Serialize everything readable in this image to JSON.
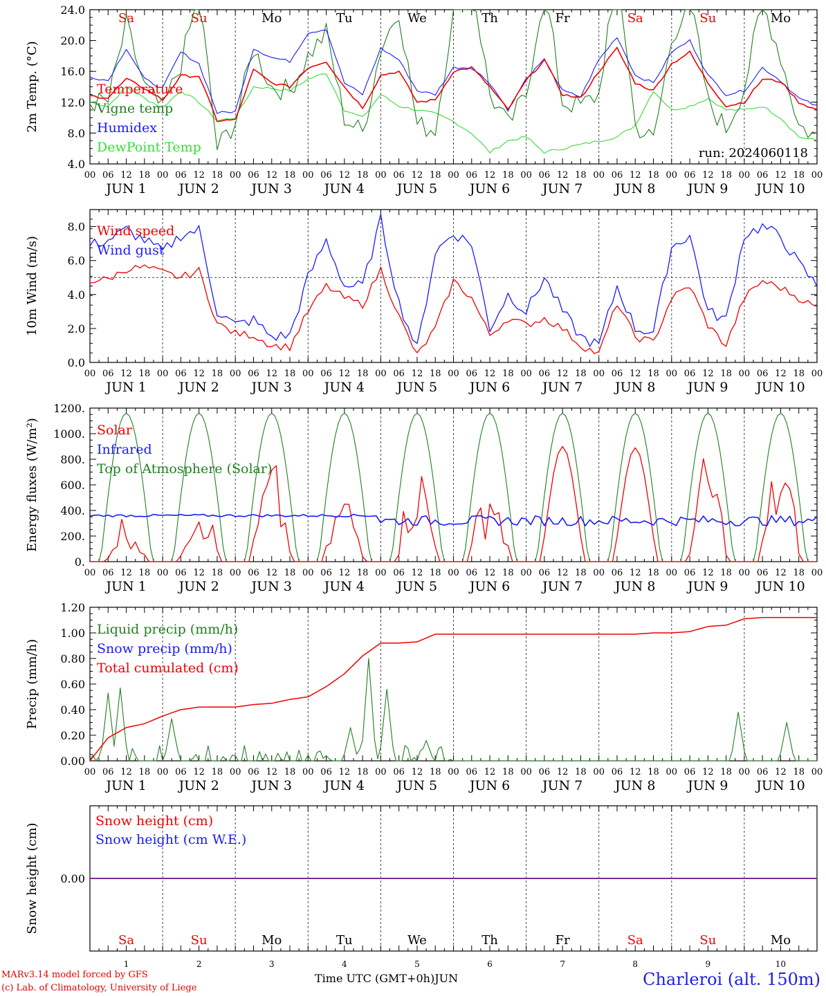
{
  "colors": {
    "red": "#ee0000",
    "blue": "#1a1aff",
    "green": "#207f20",
    "lime": "#33dd33",
    "purple": "#7a2a9a",
    "grid": "#555555"
  },
  "days": [
    "Sa",
    "Su",
    "Mo",
    "Tu",
    "We",
    "Th",
    "Fr",
    "Sa",
    "Su",
    "Mo"
  ],
  "weekend_days": [
    0,
    1,
    7,
    8
  ],
  "date_labels": [
    "JUN  1",
    "JUN  2",
    "JUN  3",
    "JUN  4",
    "JUN  5",
    "JUN  6",
    "JUN  7",
    "JUN  8",
    "JUN  9",
    "JUN 10"
  ],
  "date_numbers": [
    "1",
    "2",
    "3",
    "4",
    "5",
    "6",
    "7",
    "8",
    "9",
    "10"
  ],
  "hour_ticks": [
    "00",
    "06",
    "12",
    "18"
  ],
  "footer": {
    "model": "MARv3.14 model forced by GFS",
    "lab": "(c) Lab. of Climatology, University of Liege",
    "xlabel": "Time UTC (GMT+0h)",
    "month": "JUN",
    "station": "Charleroi (alt. 150m)"
  },
  "chart_data": [
    {
      "type": "line",
      "ylabel": "2m Temp. (°C)",
      "ylim": [
        4,
        24
      ],
      "yticks": [
        "4.0",
        "8.0",
        "12.0",
        "16.0",
        "20.0",
        "24.0"
      ],
      "note": "run: 2024060118",
      "x_hours": [
        0,
        6,
        12,
        18,
        24,
        30,
        36,
        42,
        48,
        54,
        60,
        66,
        72,
        78,
        84,
        90,
        96,
        102,
        108,
        114,
        120,
        126,
        132,
        138,
        144,
        150,
        156,
        162,
        168,
        174,
        180,
        186,
        192,
        198,
        204,
        210,
        216,
        222,
        228,
        234,
        240
      ],
      "series": [
        {
          "name": "Temperature",
          "color": "red",
          "values": [
            12.8,
            12.6,
            15.0,
            13.8,
            12.3,
            15.4,
            15.4,
            9.6,
            9.7,
            16.2,
            14.5,
            14.0,
            16.5,
            17.3,
            14.0,
            11.3,
            15.5,
            16.0,
            12.0,
            12.3,
            16.0,
            16.5,
            14.0,
            11.0,
            14.8,
            17.5,
            13.0,
            12.5,
            16.0,
            19.0,
            14.5,
            13.5,
            17.0,
            18.5,
            14.5,
            11.5,
            12.0,
            15.0,
            14.7,
            12.0,
            11.0
          ]
        },
        {
          "name": "Vigne temp",
          "color": "green",
          "values": [
            12.0,
            12.0,
            22.0,
            14.0,
            11.0,
            17.0,
            26.0,
            6.0,
            9.5,
            19.0,
            14.0,
            13.5,
            18.0,
            21.0,
            10.0,
            8.0,
            19.0,
            24.0,
            9.0,
            8.5,
            24.0,
            28.0,
            13.0,
            9.0,
            13.0,
            27.0,
            12.0,
            11.5,
            13.0,
            30.0,
            9.0,
            7.0,
            20.0,
            26.0,
            12.0,
            8.5,
            14.0,
            25.0,
            18.0,
            9.0,
            7.5
          ]
        },
        {
          "name": "Humidex",
          "color": "blue",
          "values": [
            15.3,
            14.8,
            19.0,
            15.0,
            13.8,
            18.5,
            17.0,
            10.6,
            10.8,
            19.0,
            17.8,
            17.3,
            21.0,
            21.5,
            14.5,
            13.0,
            19.0,
            17.5,
            13.5,
            13.0,
            16.5,
            16.5,
            14.5,
            11.0,
            15.0,
            17.5,
            13.5,
            12.7,
            17.5,
            20.5,
            15.5,
            14.5,
            18.5,
            20.0,
            15.5,
            13.0,
            13.5,
            16.5,
            14.8,
            12.5,
            11.5
          ]
        },
        {
          "name": "DewPoint Temp",
          "color": "lime",
          "values": [
            12.0,
            11.5,
            14.0,
            12.5,
            11.3,
            13.5,
            12.0,
            9.6,
            10.0,
            14.0,
            13.8,
            13.5,
            15.0,
            15.8,
            11.0,
            10.0,
            13.0,
            11.5,
            11.0,
            10.5,
            9.5,
            8.0,
            5.5,
            7.0,
            7.5,
            5.5,
            6.0,
            6.5,
            7.0,
            7.5,
            9.0,
            13.5,
            11.0,
            11.5,
            12.5,
            11.0,
            11.0,
            11.5,
            10.0,
            7.5,
            7.0
          ]
        }
      ]
    },
    {
      "type": "line",
      "ylabel": "10m Wind (m/s)",
      "ylim": [
        0,
        9
      ],
      "yticks": [
        "0.0",
        "2.0",
        "4.0",
        "6.0",
        "8.0"
      ],
      "reference_line": 5,
      "x_hours": [
        0,
        6,
        12,
        18,
        24,
        30,
        36,
        42,
        48,
        54,
        60,
        66,
        72,
        78,
        84,
        90,
        96,
        102,
        108,
        114,
        120,
        126,
        132,
        138,
        144,
        150,
        156,
        162,
        168,
        174,
        180,
        186,
        192,
        198,
        204,
        210,
        216,
        222,
        228,
        234,
        240
      ],
      "series": [
        {
          "name": "Wind speed",
          "color": "red",
          "values": [
            4.8,
            4.9,
            5.5,
            5.6,
            5.3,
            5.0,
            5.4,
            2.3,
            1.7,
            1.6,
            1.0,
            0.9,
            3.0,
            4.5,
            3.8,
            3.4,
            5.5,
            2.7,
            0.4,
            2.0,
            4.8,
            3.8,
            1.6,
            2.6,
            2.2,
            2.6,
            2.0,
            1.0,
            0.5,
            3.5,
            1.5,
            1.2,
            3.8,
            4.5,
            2.2,
            1.0,
            3.8,
            4.8,
            4.4,
            3.8,
            3.2
          ]
        },
        {
          "name": "Wind gust",
          "color": "blue",
          "values": [
            6.9,
            7.2,
            7.8,
            7.2,
            6.5,
            7.5,
            7.8,
            3.0,
            2.2,
            2.5,
            1.5,
            1.6,
            5.0,
            7.2,
            4.5,
            4.5,
            8.4,
            3.5,
            0.8,
            6.5,
            7.6,
            7.0,
            2.0,
            4.0,
            3.0,
            5.0,
            3.0,
            1.5,
            1.0,
            4.5,
            2.0,
            1.8,
            6.8,
            7.5,
            3.0,
            2.5,
            7.5,
            8.0,
            7.4,
            5.8,
            4.5
          ]
        }
      ]
    },
    {
      "type": "line",
      "ylabel": "Energy fluxes (W/m²)",
      "ylim": [
        0,
        1200
      ],
      "yticks": [
        "0.",
        "200.",
        "400.",
        "600.",
        "800.",
        "1000.",
        "1200."
      ],
      "series": [
        {
          "name": "Solar",
          "color": "red",
          "daily_peak": [
            400,
            640,
            820,
            580,
            860,
            740,
            900,
            890,
            880,
            900
          ]
        },
        {
          "name": "Infrared",
          "color": "blue",
          "range": [
            270,
            370
          ]
        },
        {
          "name": "Top of Atmosphere (Solar)",
          "color": "green",
          "daily_peak": [
            1160,
            1160,
            1160,
            1160,
            1160,
            1160,
            1160,
            1160,
            1160,
            1160
          ]
        }
      ]
    },
    {
      "type": "line",
      "ylabel": "Precip (mm/h)",
      "ylim": [
        0,
        1.2
      ],
      "yticks": [
        "0.00",
        "0.20",
        "0.40",
        "0.60",
        "0.80",
        "1.00",
        "1.20"
      ],
      "series": [
        {
          "name": "Liquid precip (mm/h)",
          "color": "green",
          "peaks": [
            [
              6,
              0.53
            ],
            [
              10,
              0.57
            ],
            [
              27,
              0.33
            ],
            [
              86,
              0.26
            ],
            [
              92,
              0.8
            ],
            [
              98,
              0.56
            ],
            [
              111,
              0.16
            ],
            [
              214,
              0.38
            ],
            [
              230,
              0.3
            ]
          ]
        },
        {
          "name": "Snow precip (mm/h)",
          "color": "blue",
          "values": []
        },
        {
          "name": "Total cumulated (cm)",
          "color": "red",
          "x_hours": [
            0,
            6,
            12,
            18,
            24,
            30,
            36,
            42,
            48,
            54,
            60,
            66,
            72,
            78,
            84,
            90,
            96,
            102,
            108,
            114,
            120,
            126,
            132,
            138,
            144,
            150,
            156,
            162,
            168,
            174,
            180,
            186,
            192,
            198,
            204,
            210,
            216,
            222,
            228,
            234,
            240
          ],
          "values": [
            0.0,
            0.18,
            0.26,
            0.29,
            0.35,
            0.4,
            0.42,
            0.42,
            0.42,
            0.44,
            0.45,
            0.48,
            0.5,
            0.58,
            0.68,
            0.82,
            0.92,
            0.92,
            0.93,
            0.99,
            0.99,
            0.99,
            0.99,
            0.99,
            0.99,
            0.99,
            0.99,
            0.99,
            0.99,
            0.99,
            0.99,
            1.0,
            1.0,
            1.01,
            1.05,
            1.06,
            1.11,
            1.12,
            1.12,
            1.12,
            1.12
          ]
        }
      ]
    },
    {
      "type": "line",
      "ylabel": "Snow height (cm)",
      "ytick": "0.00",
      "series": [
        {
          "name": "Snow height (cm)",
          "color": "red",
          "values": [
            0,
            0
          ]
        },
        {
          "name": "Snow height (cm W.E.)",
          "color": "blue",
          "values": [
            0,
            0
          ]
        }
      ]
    }
  ]
}
